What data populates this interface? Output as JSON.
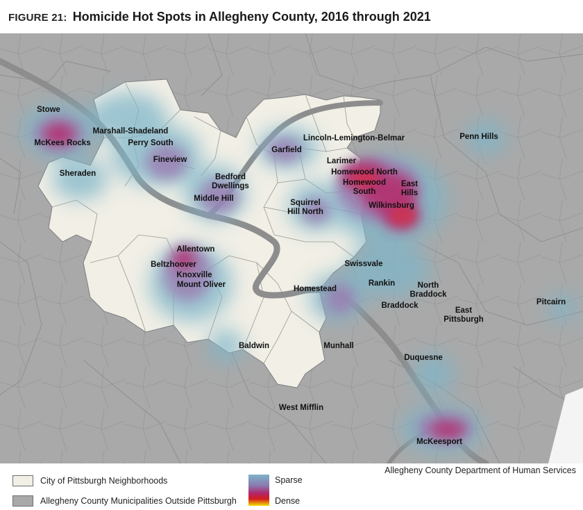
{
  "figure": {
    "label": "FIGURE 21:",
    "title": "Homicide Hot Spots in Allegheny County, 2016 through 2021"
  },
  "source": "Allegheny County Department of Human Services",
  "legend": {
    "city_label": "City of Pittsburgh Neighborhoods",
    "county_label": "Allegheny County Municipalities Outside Pittsburgh",
    "density_low": "Sparse",
    "density_high": "Dense"
  },
  "colors": {
    "city_fill": "#f1efe6",
    "county_fill": "#a9a9a9",
    "river": "#8d8d8d",
    "density_ramp": [
      "#7fb3c9",
      "#8a7ab0",
      "#b0276a",
      "#d61c1c",
      "#f3e300"
    ]
  },
  "places": [
    {
      "id": "stowe",
      "name": "Stowe"
    },
    {
      "id": "mckees-rocks",
      "name": "McKees Rocks"
    },
    {
      "id": "sheraden",
      "name": "Sheraden"
    },
    {
      "id": "marshall-shadeland",
      "name": "Marshall-Shadeland"
    },
    {
      "id": "perry-south",
      "name": "Perry South"
    },
    {
      "id": "fineview",
      "name": "Fineview"
    },
    {
      "id": "bedford-dwellings",
      "name": "Bedford\nDwellings"
    },
    {
      "id": "middle-hill",
      "name": "Middle Hill"
    },
    {
      "id": "garfield",
      "name": "Garfield"
    },
    {
      "id": "lincoln-lemington-belmar",
      "name": "Lincoln-Lemington-Belmar"
    },
    {
      "id": "larimer",
      "name": "Larimer"
    },
    {
      "id": "homewood-north",
      "name": "Homewood North"
    },
    {
      "id": "homewood-south",
      "name": "Homewood\nSouth"
    },
    {
      "id": "east-hills",
      "name": "East\nHills"
    },
    {
      "id": "wilkinsburg",
      "name": "Wilkinsburg"
    },
    {
      "id": "penn-hills",
      "name": "Penn Hills"
    },
    {
      "id": "squirrel-hill-north",
      "name": "Squirrel\nHill North"
    },
    {
      "id": "allentown",
      "name": "Allentown"
    },
    {
      "id": "beltzhoover",
      "name": "Beltzhoover"
    },
    {
      "id": "knoxville",
      "name": "Knoxville"
    },
    {
      "id": "mount-oliver",
      "name": "Mount Oliver"
    },
    {
      "id": "swissvale",
      "name": "Swissvale"
    },
    {
      "id": "homestead",
      "name": "Homestead"
    },
    {
      "id": "rankin",
      "name": "Rankin"
    },
    {
      "id": "north-braddock",
      "name": "North\nBraddock"
    },
    {
      "id": "braddock",
      "name": "Braddock"
    },
    {
      "id": "east-pittsburgh",
      "name": "East\nPittsburgh"
    },
    {
      "id": "pitcairn",
      "name": "Pitcairn"
    },
    {
      "id": "baldwin",
      "name": "Baldwin"
    },
    {
      "id": "munhall",
      "name": "Munhall"
    },
    {
      "id": "duquesne",
      "name": "Duquesne"
    },
    {
      "id": "west-mifflin",
      "name": "West Mifflin"
    },
    {
      "id": "mckeesport",
      "name": "McKeesport"
    }
  ],
  "hotspots": [
    {
      "place": "mckees-rocks",
      "intensity": "dense"
    },
    {
      "place": "stowe",
      "intensity": "sparse"
    },
    {
      "place": "marshall-shadeland",
      "intensity": "sparse"
    },
    {
      "place": "perry-south",
      "intensity": "sparse"
    },
    {
      "place": "fineview",
      "intensity": "moderate"
    },
    {
      "place": "sheraden",
      "intensity": "sparse"
    },
    {
      "place": "middle-hill",
      "intensity": "moderate"
    },
    {
      "place": "garfield",
      "intensity": "sparse"
    },
    {
      "place": "larimer",
      "intensity": "dense"
    },
    {
      "place": "homewood-north",
      "intensity": "dense"
    },
    {
      "place": "homewood-south",
      "intensity": "dense"
    },
    {
      "place": "east-hills",
      "intensity": "dense"
    },
    {
      "place": "wilkinsburg",
      "intensity": "dense"
    },
    {
      "place": "penn-hills",
      "intensity": "sparse"
    },
    {
      "place": "squirrel-hill-north",
      "intensity": "sparse"
    },
    {
      "place": "allentown",
      "intensity": "moderate"
    },
    {
      "place": "beltzhoover",
      "intensity": "moderate"
    },
    {
      "place": "knoxville",
      "intensity": "moderate"
    },
    {
      "place": "swissvale",
      "intensity": "sparse"
    },
    {
      "place": "homestead",
      "intensity": "moderate"
    },
    {
      "place": "braddock",
      "intensity": "sparse"
    },
    {
      "place": "pitcairn",
      "intensity": "sparse"
    },
    {
      "place": "duquesne",
      "intensity": "sparse"
    },
    {
      "place": "mckeesport",
      "intensity": "dense"
    }
  ]
}
